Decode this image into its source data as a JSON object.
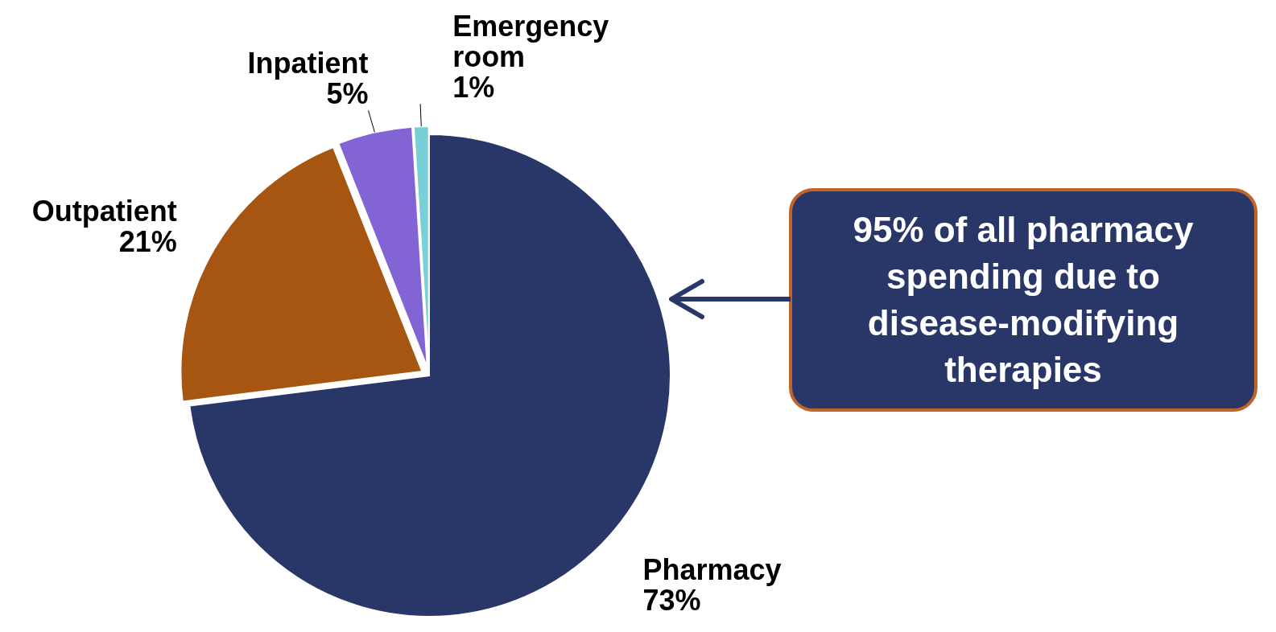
{
  "chart_data": {
    "type": "pie",
    "categories": [
      "Pharmacy",
      "Outpatient",
      "Inpatient",
      "Emergency room"
    ],
    "values": [
      73,
      21,
      5,
      1
    ],
    "value_labels": [
      "73%",
      "21%",
      "5%",
      "1%"
    ],
    "colors": [
      "#283768",
      "#a65611",
      "#8264d4",
      "#79cfd6"
    ],
    "annotations": [
      "95% of all pharmacy spending due to disease-modifying therapies"
    ]
  }
}
